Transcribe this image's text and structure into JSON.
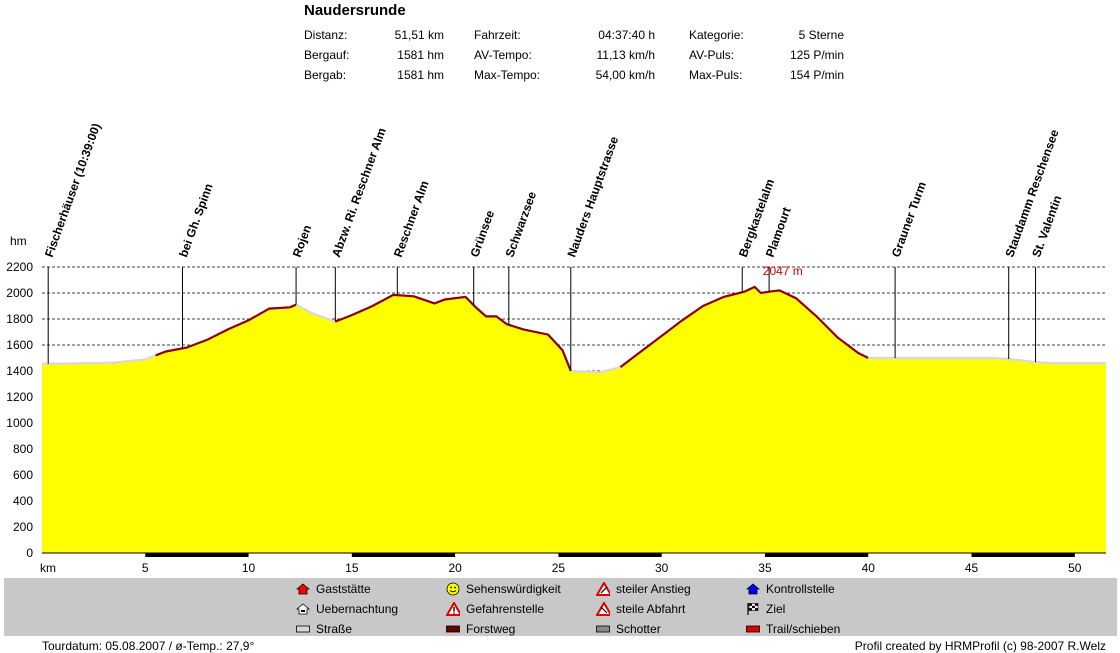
{
  "title": "Naudersrunde",
  "stats": [
    [
      {
        "label": "Distanz:",
        "value": "51,51 km"
      },
      {
        "label": "Fahrzeit:",
        "value": "04:37:40 h"
      },
      {
        "label": "Kategorie:",
        "value": "5 Sterne"
      }
    ],
    [
      {
        "label": "Bergauf:",
        "value": "1581 hm"
      },
      {
        "label": "AV-Tempo:",
        "value": "11,13 km/h"
      },
      {
        "label": "AV-Puls:",
        "value": "125 P/min"
      }
    ],
    [
      {
        "label": "Bergab:",
        "value": "1581 hm"
      },
      {
        "label": "Max-Tempo:",
        "value": "54,00 km/h"
      },
      {
        "label": "Max-Puls:",
        "value": "154 P/min"
      }
    ]
  ],
  "chart_data": {
    "type": "area",
    "title": "Naudersrunde",
    "xlabel": "km",
    "ylabel": "hm",
    "xlim": [
      0,
      51.51
    ],
    "ylim": [
      0,
      2200
    ],
    "yticks": [
      0,
      200,
      400,
      600,
      800,
      1000,
      1200,
      1400,
      1600,
      1800,
      2000,
      2200
    ],
    "xticks": [
      5,
      10,
      15,
      20,
      25,
      30,
      35,
      40,
      45,
      50
    ],
    "grid": true,
    "fill_color": "#ffff00",
    "max_label": "2047 m",
    "max_point": {
      "x": 34.7,
      "y": 2047
    },
    "profile": {
      "x": [
        0,
        2,
        3.5,
        5,
        6,
        7,
        8,
        9,
        10,
        11,
        12,
        12.3,
        13,
        14.2,
        15,
        16,
        17,
        18,
        19,
        19.5,
        20.5,
        21,
        21.5,
        22,
        22.5,
        23.3,
        24.5,
        25.2,
        25.6,
        27,
        28,
        29,
        30,
        31,
        32,
        33,
        34,
        34.5,
        34.8,
        35.2,
        35.7,
        36.5,
        37.5,
        38.5,
        39.5,
        40,
        41,
        42,
        43,
        44,
        45,
        46,
        47,
        48,
        49,
        50,
        51.51
      ],
      "y": [
        1455,
        1460,
        1465,
        1490,
        1550,
        1580,
        1640,
        1720,
        1790,
        1880,
        1890,
        1910,
        1850,
        1780,
        1830,
        1900,
        1985,
        1975,
        1920,
        1950,
        1970,
        1890,
        1820,
        1820,
        1760,
        1720,
        1680,
        1560,
        1400,
        1390,
        1430,
        1550,
        1670,
        1790,
        1900,
        1970,
        2010,
        2047,
        2000,
        2010,
        2020,
        1960,
        1820,
        1660,
        1540,
        1500,
        1500,
        1500,
        1500,
        1500,
        1500,
        1500,
        1490,
        1470,
        1460,
        1460,
        1460
      ]
    },
    "surface_segments": [
      {
        "x0": 0,
        "x1": 5.5,
        "color": "#d8d8d8"
      },
      {
        "x0": 5.5,
        "x1": 12.3,
        "color": "#8b0000"
      },
      {
        "x0": 12.3,
        "x1": 14.2,
        "color": "#d8d8d8"
      },
      {
        "x0": 14.2,
        "x1": 25.6,
        "color": "#8b0000"
      },
      {
        "x0": 25.6,
        "x1": 28,
        "color": "#d8d8d8"
      },
      {
        "x0": 28,
        "x1": 40,
        "color": "#8b0000"
      },
      {
        "x0": 40,
        "x1": 51.51,
        "color": "#d8d8d8"
      }
    ],
    "bottom_bars": [
      {
        "x0": 5,
        "x1": 10
      },
      {
        "x0": 15,
        "x1": 20
      },
      {
        "x0": 25,
        "x1": 30
      },
      {
        "x0": 35,
        "x1": 40
      },
      {
        "x0": 45,
        "x1": 50
      }
    ],
    "waypoints": [
      {
        "label": "Fischerhäuser (10:39:00)",
        "x": 0.3
      },
      {
        "label": "bei Gh. Spinn",
        "x": 6.8
      },
      {
        "label": "Rojen",
        "x": 12.3
      },
      {
        "label": "Abzw. Ri. Reschner Alm",
        "x": 14.2
      },
      {
        "label": "Reschner Alm",
        "x": 17.2
      },
      {
        "label": "Grünsee",
        "x": 20.9
      },
      {
        "label": "Schwarzsee",
        "x": 22.6
      },
      {
        "label": "Nauders Hauptstrasse",
        "x": 25.6
      },
      {
        "label": "Bergkastelalm",
        "x": 33.9
      },
      {
        "label": "Plamourt",
        "x": 35.2
      },
      {
        "label": "Grauner Turm",
        "x": 41.3
      },
      {
        "label": "Staudamm Reschensee",
        "x": 46.8
      },
      {
        "label": "St. Valentin",
        "x": 48.1
      }
    ]
  },
  "legend": [
    {
      "icon": "house-icon",
      "label": "Gaststätte",
      "color": "#ff0000"
    },
    {
      "icon": "smiley-icon",
      "label": "Sehenswürdigkeit",
      "color": "#ffff00"
    },
    {
      "icon": "steep-up-icon",
      "label": "steiler Anstieg",
      "color": "#ff0000"
    },
    {
      "icon": "control-icon",
      "label": "Kontrollstelle",
      "color": "#0000ff"
    },
    {
      "icon": "lodging-icon",
      "label": "Uebernachtung",
      "color": "#ffffff"
    },
    {
      "icon": "warning-icon",
      "label": "Gefahrenstelle",
      "color": "#ff0000"
    },
    {
      "icon": "steep-down-icon",
      "label": "steile Abfahrt",
      "color": "#ff0000"
    },
    {
      "icon": "finish-flag-icon",
      "label": "Ziel",
      "color": "#000000"
    },
    {
      "icon": "road-swatch",
      "label": "Straße",
      "color": "#d8d8d8"
    },
    {
      "icon": "forestroad-swatch",
      "label": "Forstweg",
      "color": "#6b0000"
    },
    {
      "icon": "gravel-swatch",
      "label": "Schotter",
      "color": "#8a8a8a"
    },
    {
      "icon": "trail-swatch",
      "label": "Trail/schieben",
      "color": "#e00000"
    }
  ],
  "footer": {
    "left": "Tourdatum: 05.08.2007  /  ø-Temp.: 27,9°",
    "right": "Profil created by HRMProfil (c) 98-2007 R.Welz"
  }
}
